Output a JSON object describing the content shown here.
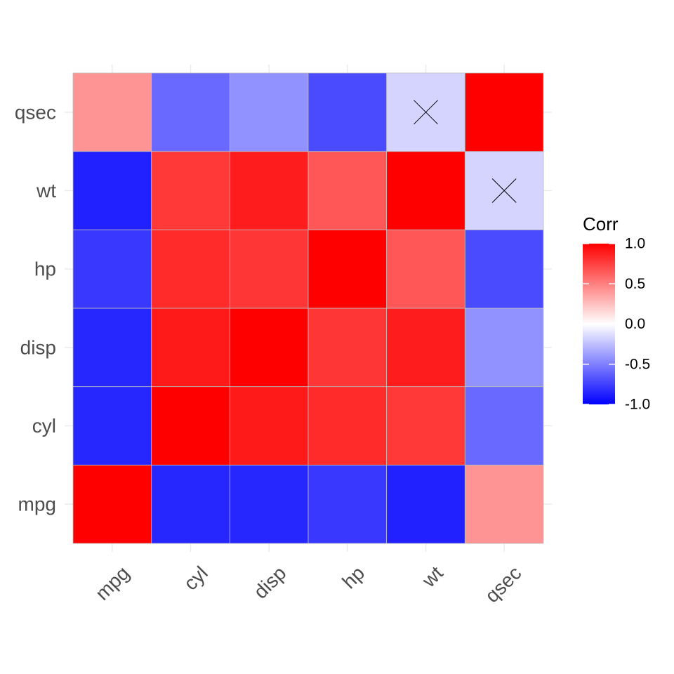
{
  "chart_data": {
    "type": "heatmap",
    "variables": [
      "mpg",
      "cyl",
      "disp",
      "hp",
      "wt",
      "qsec"
    ],
    "matrix": [
      [
        1.0,
        -0.85,
        -0.85,
        -0.78,
        -0.87,
        0.42
      ],
      [
        -0.85,
        1.0,
        0.9,
        0.83,
        0.78,
        -0.59
      ],
      [
        -0.85,
        0.9,
        1.0,
        0.79,
        0.89,
        -0.43
      ],
      [
        -0.78,
        0.83,
        0.79,
        1.0,
        0.66,
        -0.71
      ],
      [
        -0.87,
        0.78,
        0.89,
        0.66,
        1.0,
        -0.17
      ],
      [
        0.42,
        -0.59,
        -0.43,
        -0.71,
        -0.17,
        1.0
      ]
    ],
    "insignificant": [
      [
        4,
        5
      ],
      [
        5,
        4
      ]
    ],
    "legend": {
      "title": "Corr",
      "ticks": [
        1.0,
        0.5,
        0.0,
        -0.5,
        -1.0
      ],
      "tick_labels": [
        "1.0",
        "0.5",
        "0.0",
        "-0.5",
        "-1.0"
      ],
      "range": [
        -1,
        1
      ],
      "colors": {
        "low": "#0000ff",
        "mid": "#ffffff",
        "high": "#ff0000"
      },
      "placement": "right"
    },
    "grid": true,
    "cell_border_color": "#bdbdbd",
    "insignificant_marker": "x"
  }
}
